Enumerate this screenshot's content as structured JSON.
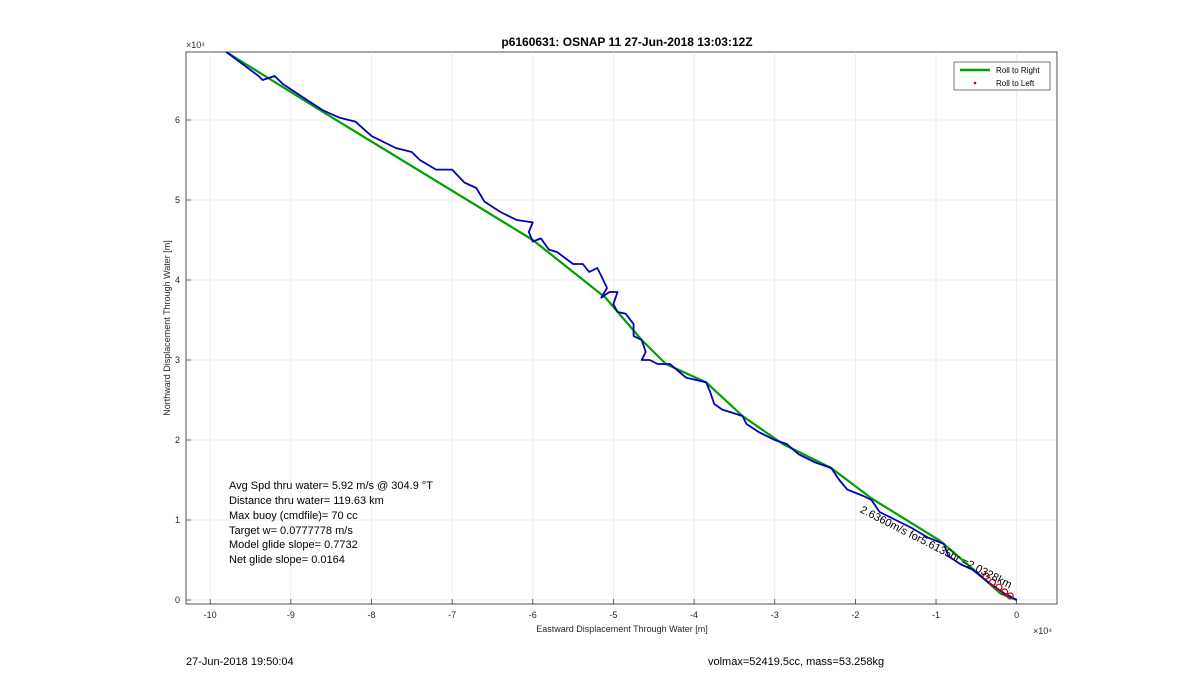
{
  "chart_data": {
    "type": "line",
    "title": "p6160631: OSNAP 11 27-Jun-2018 13:03:12Z",
    "xlabel": "Eastward Displacement Through Water [m]",
    "ylabel": "Northward Displacement Through Water [m]",
    "x_exponent": "×10⁴",
    "y_exponent": "×10⁴",
    "xlim": [
      -10.3,
      0.5
    ],
    "ylim": [
      -0.05,
      6.85
    ],
    "x_ticks": [
      -10,
      -9,
      -8,
      -7,
      -6,
      -5,
      -4,
      -3,
      -2,
      -1,
      0
    ],
    "y_ticks": [
      0,
      1,
      2,
      3,
      4,
      5,
      6
    ],
    "grid": true,
    "legend_position": "top-right",
    "series": [
      {
        "name": "Roll to Right",
        "color": "#00a000",
        "style": "line",
        "points": [
          [
            -9.8,
            6.85
          ],
          [
            -8.6,
            6.1
          ],
          [
            -6.0,
            4.5
          ],
          [
            -5.1,
            3.78
          ],
          [
            -4.65,
            3.25
          ],
          [
            -4.35,
            2.95
          ],
          [
            -3.85,
            2.72
          ],
          [
            -3.4,
            2.3
          ],
          [
            -2.9,
            1.95
          ],
          [
            -2.3,
            1.65
          ],
          [
            -1.8,
            1.27
          ],
          [
            -0.95,
            0.74
          ],
          [
            -0.5,
            0.35
          ],
          [
            -0.2,
            0.08
          ],
          [
            0,
            0
          ]
        ]
      },
      {
        "name": "Roll to Left",
        "color": "#d00000",
        "style": "markers",
        "points": [
          [
            -0.38,
            0.3
          ],
          [
            -0.3,
            0.22
          ],
          [
            -0.22,
            0.16
          ],
          [
            -0.15,
            0.1
          ],
          [
            -0.08,
            0.05
          ]
        ]
      },
      {
        "name": "",
        "color": "#0000c0",
        "style": "line",
        "points": [
          [
            -9.8,
            6.85
          ],
          [
            -9.6,
            6.7
          ],
          [
            -9.4,
            6.55
          ],
          [
            -9.35,
            6.5
          ],
          [
            -9.2,
            6.55
          ],
          [
            -9.1,
            6.45
          ],
          [
            -8.95,
            6.35
          ],
          [
            -8.8,
            6.25
          ],
          [
            -8.6,
            6.12
          ],
          [
            -8.4,
            6.03
          ],
          [
            -8.2,
            5.98
          ],
          [
            -8.0,
            5.8
          ],
          [
            -7.7,
            5.65
          ],
          [
            -7.5,
            5.6
          ],
          [
            -7.4,
            5.5
          ],
          [
            -7.2,
            5.38
          ],
          [
            -7.0,
            5.38
          ],
          [
            -6.85,
            5.22
          ],
          [
            -6.7,
            5.15
          ],
          [
            -6.6,
            4.98
          ],
          [
            -6.4,
            4.85
          ],
          [
            -6.2,
            4.75
          ],
          [
            -6.0,
            4.72
          ],
          [
            -6.05,
            4.6
          ],
          [
            -6.0,
            4.48
          ],
          [
            -5.95,
            4.5
          ],
          [
            -5.9,
            4.52
          ],
          [
            -5.8,
            4.38
          ],
          [
            -5.7,
            4.35
          ],
          [
            -5.5,
            4.2
          ],
          [
            -5.38,
            4.2
          ],
          [
            -5.3,
            4.1
          ],
          [
            -5.2,
            4.15
          ],
          [
            -5.15,
            4.05
          ],
          [
            -5.08,
            3.9
          ],
          [
            -5.15,
            3.78
          ],
          [
            -5.05,
            3.85
          ],
          [
            -4.95,
            3.85
          ],
          [
            -5.0,
            3.7
          ],
          [
            -4.95,
            3.6
          ],
          [
            -4.85,
            3.58
          ],
          [
            -4.75,
            3.45
          ],
          [
            -4.75,
            3.3
          ],
          [
            -4.65,
            3.25
          ],
          [
            -4.6,
            3.1
          ],
          [
            -4.65,
            3.0
          ],
          [
            -4.55,
            3.0
          ],
          [
            -4.45,
            2.95
          ],
          [
            -4.3,
            2.95
          ],
          [
            -4.1,
            2.78
          ],
          [
            -3.85,
            2.72
          ],
          [
            -3.8,
            2.6
          ],
          [
            -3.75,
            2.45
          ],
          [
            -3.65,
            2.38
          ],
          [
            -3.4,
            2.3
          ],
          [
            -3.35,
            2.2
          ],
          [
            -3.2,
            2.1
          ],
          [
            -3.0,
            2.0
          ],
          [
            -2.85,
            1.95
          ],
          [
            -2.7,
            1.82
          ],
          [
            -2.5,
            1.72
          ],
          [
            -2.3,
            1.65
          ],
          [
            -2.2,
            1.5
          ],
          [
            -2.1,
            1.38
          ],
          [
            -1.9,
            1.3
          ],
          [
            -1.8,
            1.25
          ],
          [
            -1.7,
            1.1
          ],
          [
            -1.5,
            1.0
          ],
          [
            -1.3,
            0.9
          ],
          [
            -1.1,
            0.78
          ],
          [
            -0.9,
            0.7
          ],
          [
            -0.85,
            0.55
          ],
          [
            -0.7,
            0.45
          ],
          [
            -0.55,
            0.38
          ],
          [
            -0.45,
            0.3
          ],
          [
            -0.35,
            0.22
          ],
          [
            -0.25,
            0.15
          ],
          [
            -0.15,
            0.08
          ],
          [
            -0.05,
            0.03
          ],
          [
            0,
            0
          ]
        ]
      }
    ],
    "annotations": [
      "Avg Spd thru water=  5.92 m/s @ 304.9 °T",
      "Distance thru water= 119.63 km",
      "Max buoy (cmdfile)= 70 cc",
      "Target w= 0.0777778 m/s",
      "Model glide slope= 0.7732",
      "Net glide slope= 0.0164"
    ],
    "rotated_label": "2.6360m/s for5.6135hr =2.0328km"
  },
  "footer": {
    "left": "27-Jun-2018 19:50:04",
    "right": "volmax=52419.5cc, mass=53.258kg"
  }
}
